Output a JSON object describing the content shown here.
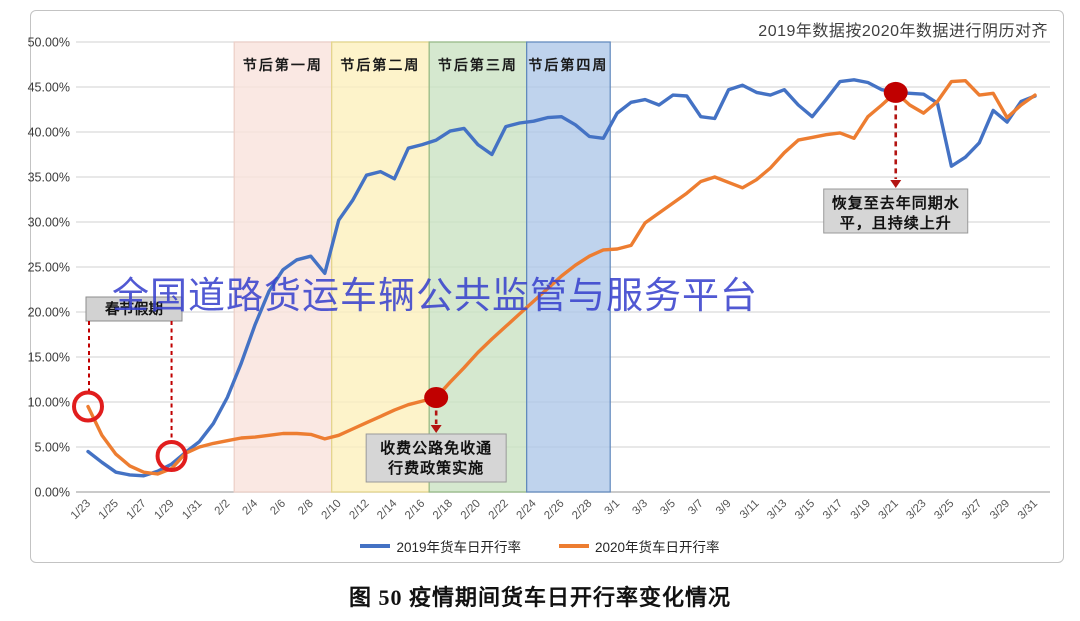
{
  "watermark": {
    "text": "全国道路货运车辆公共监管与服务平台",
    "color": "#3942cd"
  },
  "caption": {
    "text": "图 50 疫情期间货车日开行率变化情况"
  },
  "chart": {
    "note": "2019年数据按2020年数据进行阴历对齐"
  },
  "chart_data": {
    "type": "line",
    "title": "疫情期间货车日开行率变化情况",
    "note": "2019年数据按2020年数据进行阴历对齐",
    "legend_position": "bottom",
    "grid": "horizontal",
    "ylim": [
      0,
      50
    ],
    "yticks": [
      "0.00%",
      "5.00%",
      "10.00%",
      "15.00%",
      "20.00%",
      "25.00%",
      "30.00%",
      "35.00%",
      "40.00%",
      "45.00%",
      "50.00%"
    ],
    "x_tick_step": 2,
    "x": [
      "1/23",
      "1/24",
      "1/25",
      "1/26",
      "1/27",
      "1/28",
      "1/29",
      "1/30",
      "1/31",
      "2/1",
      "2/2",
      "2/3",
      "2/4",
      "2/5",
      "2/6",
      "2/7",
      "2/8",
      "2/9",
      "2/10",
      "2/11",
      "2/12",
      "2/13",
      "2/14",
      "2/15",
      "2/16",
      "2/17",
      "2/18",
      "2/19",
      "2/20",
      "2/21",
      "2/22",
      "2/23",
      "2/24",
      "2/25",
      "2/26",
      "2/27",
      "2/28",
      "2/29",
      "3/1",
      "3/2",
      "3/3",
      "3/4",
      "3/5",
      "3/6",
      "3/7",
      "3/8",
      "3/9",
      "3/10",
      "3/11",
      "3/12",
      "3/13",
      "3/14",
      "3/15",
      "3/16",
      "3/17",
      "3/18",
      "3/19",
      "3/20",
      "3/21",
      "3/22",
      "3/23",
      "3/24",
      "3/25",
      "3/26",
      "3/27",
      "3/28",
      "3/29",
      "3/30",
      "3/31"
    ],
    "series": [
      {
        "name": "2019年货车日开行率",
        "color": "#4472c4",
        "values": [
          4.5,
          3.3,
          2.2,
          1.9,
          1.8,
          2.3,
          3.1,
          4.4,
          5.6,
          7.6,
          10.5,
          14.3,
          18.6,
          22.3,
          24.7,
          25.8,
          26.2,
          24.3,
          30.2,
          32.4,
          35.2,
          35.6,
          34.8,
          38.2,
          38.6,
          39.1,
          40.1,
          40.4,
          38.6,
          37.5,
          40.6,
          41.0,
          41.2,
          41.6,
          41.7,
          40.8,
          39.5,
          39.3,
          42.1,
          43.3,
          43.6,
          43.0,
          44.1,
          44.0,
          41.7,
          41.5,
          44.7,
          45.2,
          44.4,
          44.1,
          44.7,
          43.0,
          41.7,
          43.6,
          45.6,
          45.8,
          45.5,
          44.7,
          44.4,
          44.3,
          44.2,
          43.2,
          36.2,
          37.2,
          38.8,
          42.4,
          41.1,
          43.4,
          44.0
        ]
      },
      {
        "name": "2020年货车日开行率",
        "color": "#ed7d31",
        "values": [
          9.5,
          6.3,
          4.2,
          2.9,
          2.2,
          2.0,
          2.6,
          4.3,
          5.0,
          5.4,
          5.7,
          6.0,
          6.1,
          6.3,
          6.5,
          6.5,
          6.4,
          5.9,
          6.3,
          7.0,
          7.7,
          8.4,
          9.1,
          9.7,
          10.1,
          10.5,
          12.2,
          13.8,
          15.5,
          17.0,
          18.4,
          19.8,
          21.2,
          22.6,
          24.0,
          25.2,
          26.2,
          26.9,
          27.0,
          27.4,
          29.9,
          31.0,
          32.1,
          33.2,
          34.5,
          35.0,
          34.4,
          33.8,
          34.7,
          36.0,
          37.7,
          39.1,
          39.4,
          39.7,
          39.9,
          39.3,
          41.7,
          43.0,
          44.4,
          43.0,
          42.1,
          43.4,
          45.6,
          45.7,
          44.1,
          44.3,
          41.6,
          43.0,
          44.1
        ]
      }
    ],
    "bands": [
      {
        "label": "节后第一周",
        "from": "2/3",
        "to": "2/10",
        "fill": "#f9e2dc",
        "edge": "#eccfc7"
      },
      {
        "label": "节后第二周",
        "from": "2/10",
        "to": "2/17",
        "fill": "#fcf0bd",
        "edge": "#e3d489"
      },
      {
        "label": "节后第三周",
        "from": "2/17",
        "to": "2/24",
        "fill": "#cbe2c3",
        "edge": "#94b884"
      },
      {
        "label": "节后第四周",
        "from": "2/24",
        "to": "3/1",
        "fill": "#afc8e8",
        "edge": "#5f88bd"
      }
    ],
    "annotations": {
      "spring_festival": {
        "text": "春节假期",
        "from_date": "1/23",
        "to_date": "1/29",
        "circles": [
          {
            "date": "1/23",
            "value": 9.5
          },
          {
            "date": "1/29",
            "value": 4.0
          }
        ]
      },
      "toll_free": {
        "lines": [
          "收费公路免收通",
          "行费政策实施"
        ],
        "date": "2/17",
        "value": 10.5
      },
      "recovery": {
        "lines": [
          "恢复至去年同期水",
          "平，且持续上升"
        ],
        "date": "3/21",
        "value": 44.4
      }
    },
    "accent_red": "#c00000"
  }
}
